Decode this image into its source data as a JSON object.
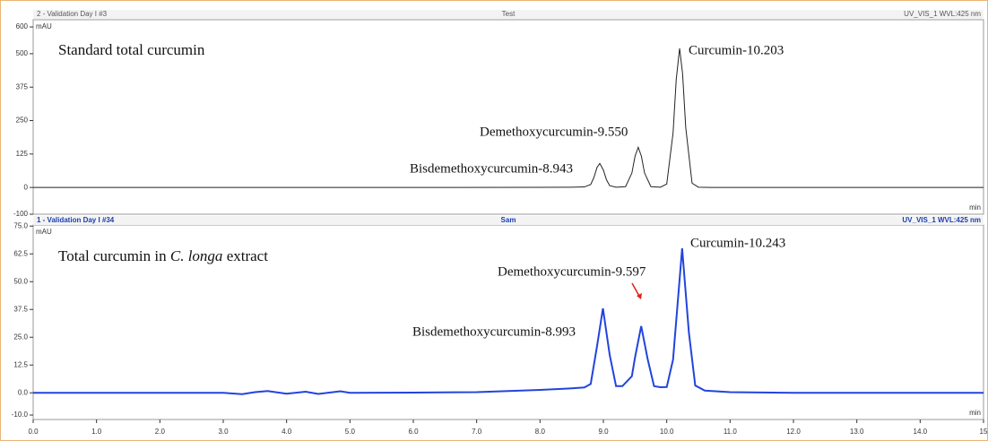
{
  "chart_data": [
    {
      "type": "line",
      "header_left": "2 - Validation Day I #3",
      "header_center": "Test",
      "header_right": "UV_VIS_1 WVL:425 nm",
      "y_unit": "mAU",
      "x_unit": "min",
      "title": "Standard total curcumin",
      "annotations": [
        "Curcumin-10.203",
        "Demethoxycurcumin-9.550",
        "Bisdemethoxycurcumin-8.943"
      ],
      "xlim": [
        0,
        15
      ],
      "ylim": [
        -100,
        627
      ],
      "yticks": [
        600,
        500,
        375,
        250,
        125,
        0,
        -100
      ],
      "x": [
        0,
        2,
        4,
        6,
        8,
        8.5,
        8.7,
        8.8,
        8.85,
        8.9,
        8.943,
        9.0,
        9.05,
        9.1,
        9.2,
        9.35,
        9.45,
        9.5,
        9.55,
        9.6,
        9.65,
        9.75,
        9.9,
        10.0,
        10.1,
        10.15,
        10.203,
        10.25,
        10.3,
        10.4,
        10.5,
        10.7,
        11,
        12,
        13,
        15
      ],
      "series": [
        {
          "color": "#222222",
          "values": [
            0,
            0,
            0,
            0,
            0.5,
            1,
            2,
            11,
            37,
            75,
            90,
            65,
            28,
            7,
            1,
            3,
            54,
            117,
            150,
            117,
            54,
            3,
            1,
            13,
            204,
            404,
            520,
            426,
            224,
            16,
            1,
            0,
            0,
            0,
            0,
            0
          ]
        }
      ]
    },
    {
      "type": "line",
      "header_left": "1 - Validation Day I #34",
      "header_center": "Sam",
      "header_right": "UV_VIS_1 WVL:425 nm",
      "y_unit": "mAU",
      "x_unit": "min",
      "title_parts": [
        "Total curcumin in ",
        "C. longa",
        " extract"
      ],
      "annotations": [
        "Curcumin-10.243",
        "Demethoxycurcumin-9.597",
        "Bisdemethoxycurcumin-8.993"
      ],
      "xlim": [
        0,
        15
      ],
      "ylim": [
        -12,
        75.5
      ],
      "yticks": [
        {
          "value": 75,
          "label": "75.0"
        },
        62.5,
        {
          "value": 50,
          "label": "50.0"
        },
        37.5,
        {
          "value": 25,
          "label": "25.0"
        },
        12.5,
        {
          "value": 0,
          "label": "0.0"
        },
        {
          "value": -10,
          "label": "-10.0"
        }
      ],
      "xticks": [
        {
          "value": 0,
          "label": "0.0"
        },
        {
          "value": 1,
          "label": "1.0"
        },
        {
          "value": 2,
          "label": "2.0"
        },
        {
          "value": 3,
          "label": "3.0"
        },
        {
          "value": 4,
          "label": "4.0"
        },
        {
          "value": 5,
          "label": "5.0"
        },
        {
          "value": 6,
          "label": "6.0"
        },
        {
          "value": 7,
          "label": "7.0"
        },
        {
          "value": 8,
          "label": "8.0"
        },
        {
          "value": 9,
          "label": "9.0"
        },
        {
          "value": 10,
          "label": "10.0"
        },
        {
          "value": 11,
          "label": "11.0"
        },
        {
          "value": 12,
          "label": "12.0"
        },
        {
          "value": 13,
          "label": "13.0"
        },
        {
          "value": 14,
          "label": "14.0"
        },
        15
      ],
      "x": [
        0,
        2,
        3,
        3.3,
        3.5,
        3.7,
        4.0,
        4.3,
        4.5,
        4.85,
        5,
        6,
        7,
        7.5,
        8,
        8.5,
        8.7,
        8.8,
        8.9,
        8.993,
        9.1,
        9.2,
        9.3,
        9.45,
        9.5,
        9.597,
        9.7,
        9.8,
        9.9,
        10.0,
        10.1,
        10.243,
        10.35,
        10.45,
        10.6,
        11,
        12,
        15
      ],
      "series": [
        {
          "color": "#2244dd",
          "values": [
            0,
            0,
            0,
            -0.6,
            0.3,
            0.8,
            -0.4,
            0.5,
            -0.5,
            0.7,
            0,
            0.1,
            0.3,
            0.8,
            1.3,
            2,
            2.4,
            4,
            21,
            38,
            17,
            3,
            3,
            7.5,
            16,
            30,
            15,
            3,
            2.5,
            2.6,
            15,
            65,
            27,
            3.3,
            1,
            0.3,
            0,
            0
          ]
        }
      ]
    }
  ]
}
